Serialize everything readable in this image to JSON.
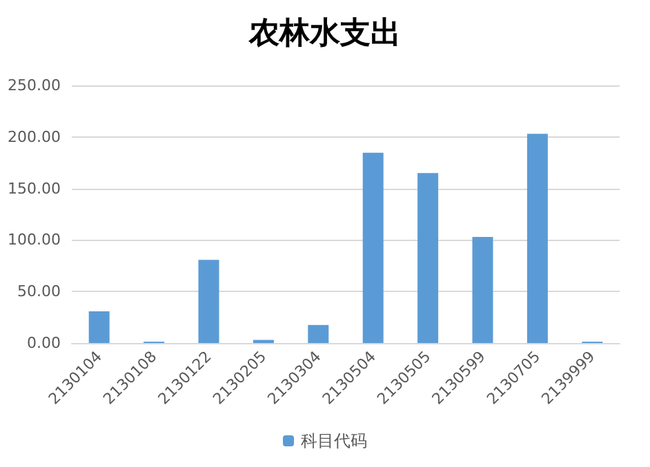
{
  "chart_data": {
    "type": "bar",
    "title": "农林水支出",
    "categories": [
      "2130104",
      "2130108",
      "2130122",
      "2130205",
      "2130304",
      "2130504",
      "2130505",
      "2130599",
      "2130705",
      "2139999"
    ],
    "series": [
      {
        "name": "科目代码",
        "color": "#5b9bd5",
        "values": [
          30.7,
          1.3,
          80.7,
          3,
          17.5,
          184.6,
          165,
          103,
          203,
          1.3
        ]
      }
    ],
    "ylim": [
      0,
      250
    ],
    "yticks": [
      {
        "value": 0,
        "label": "0.00"
      },
      {
        "value": 50,
        "label": "50.00"
      },
      {
        "value": 100,
        "label": "100.00"
      },
      {
        "value": 150,
        "label": "150.00"
      },
      {
        "value": 200,
        "label": "200.00"
      },
      {
        "value": 250,
        "label": "250.00"
      }
    ],
    "grid": "y",
    "legend": "bottom"
  }
}
